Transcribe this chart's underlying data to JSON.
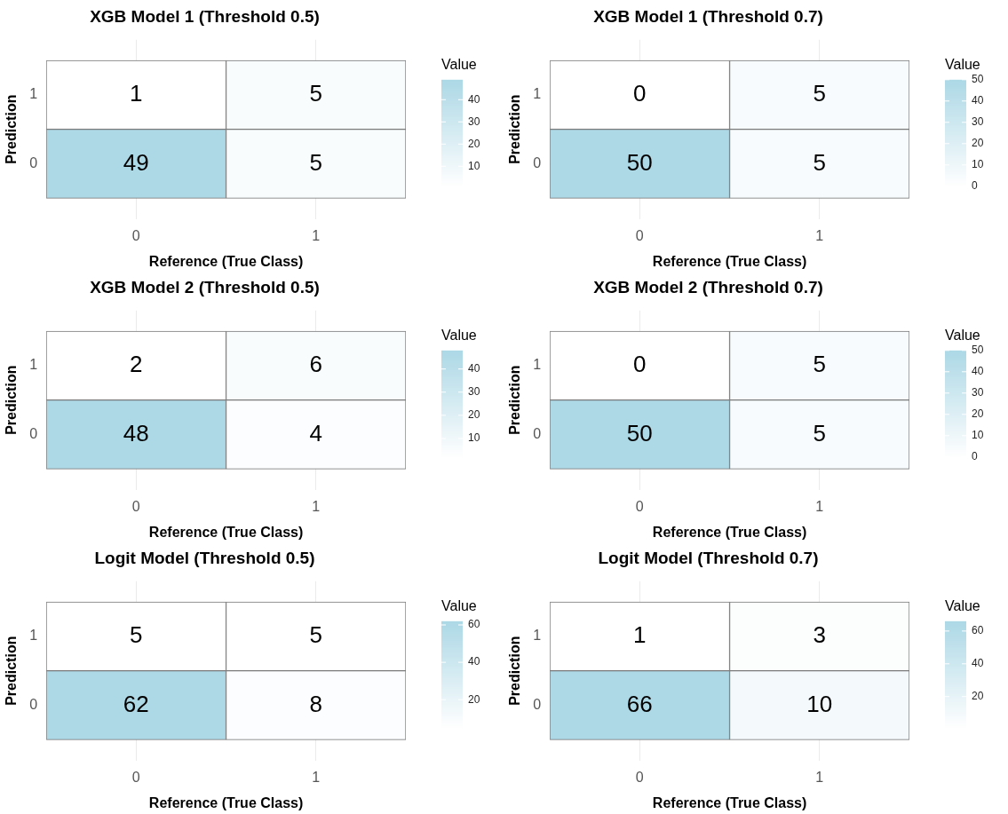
{
  "chart_data": [
    {
      "type": "heatmap",
      "title": "XGB Model 1 (Threshold 0.5)",
      "xlabel": "Reference (True Class)",
      "ylabel": "Prediction",
      "clabel": "Value",
      "categories": [
        "0",
        "1"
      ],
      "y_categories": [
        "1",
        "0"
      ],
      "cells": [
        [
          1,
          5
        ],
        [
          49,
          5
        ]
      ],
      "clim": [
        1,
        49
      ],
      "cticks": [
        10,
        20,
        30,
        40
      ],
      "data_labels": true,
      "grid": true
    },
    {
      "type": "heatmap",
      "title": "XGB Model 1 (Threshold 0.7)",
      "xlabel": "Reference (True Class)",
      "ylabel": "Prediction",
      "clabel": "Value",
      "categories": [
        "0",
        "1"
      ],
      "y_categories": [
        "1",
        "0"
      ],
      "cells": [
        [
          0,
          5
        ],
        [
          50,
          5
        ]
      ],
      "clim": [
        0,
        50
      ],
      "cticks": [
        0,
        10,
        20,
        30,
        40,
        50
      ],
      "data_labels": true,
      "grid": true
    },
    {
      "type": "heatmap",
      "title": "XGB Model 2 (Threshold 0.5)",
      "xlabel": "Reference (True Class)",
      "ylabel": "Prediction",
      "clabel": "Value",
      "categories": [
        "0",
        "1"
      ],
      "y_categories": [
        "1",
        "0"
      ],
      "cells": [
        [
          2,
          6
        ],
        [
          48,
          4
        ]
      ],
      "clim": [
        2,
        48
      ],
      "cticks": [
        10,
        20,
        30,
        40
      ],
      "data_labels": true,
      "grid": true
    },
    {
      "type": "heatmap",
      "title": "XGB Model 2 (Threshold 0.7)",
      "xlabel": "Reference (True Class)",
      "ylabel": "Prediction",
      "clabel": "Value",
      "categories": [
        "0",
        "1"
      ],
      "y_categories": [
        "1",
        "0"
      ],
      "cells": [
        [
          0,
          5
        ],
        [
          50,
          5
        ]
      ],
      "clim": [
        0,
        50
      ],
      "cticks": [
        0,
        10,
        20,
        30,
        40,
        50
      ],
      "data_labels": true,
      "grid": true
    },
    {
      "type": "heatmap",
      "title": "Logit Model (Threshold 0.5)",
      "xlabel": "Reference (True Class)",
      "ylabel": "Prediction",
      "clabel": "Value",
      "categories": [
        "0",
        "1"
      ],
      "y_categories": [
        "1",
        "0"
      ],
      "cells": [
        [
          5,
          5
        ],
        [
          62,
          8
        ]
      ],
      "clim": [
        5,
        62
      ],
      "cticks": [
        20,
        40,
        60
      ],
      "data_labels": true,
      "grid": true
    },
    {
      "type": "heatmap",
      "title": "Logit Model (Threshold 0.7)",
      "xlabel": "Reference (True Class)",
      "ylabel": "Prediction",
      "clabel": "Value",
      "categories": [
        "0",
        "1"
      ],
      "y_categories": [
        "1",
        "0"
      ],
      "cells": [
        [
          1,
          3
        ],
        [
          66,
          10
        ]
      ],
      "clim": [
        1,
        66
      ],
      "cticks": [
        20,
        40,
        60
      ],
      "data_labels": true,
      "grid": true
    }
  ]
}
